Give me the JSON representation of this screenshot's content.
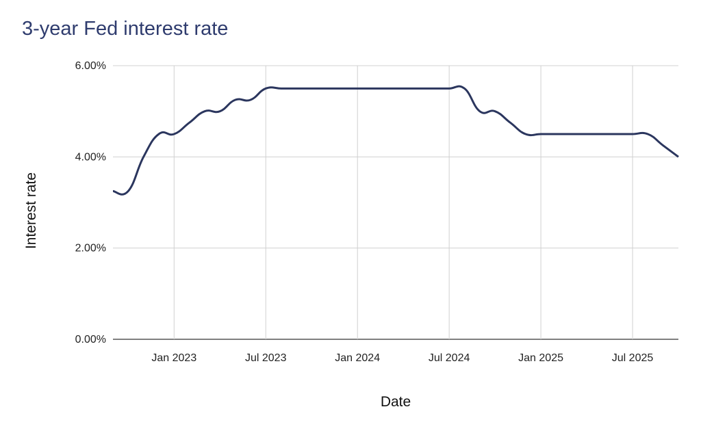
{
  "chart_data": {
    "type": "line",
    "title": "3-year Fed interest rate",
    "xlabel": "Date",
    "ylabel": "Interest rate",
    "ylim": [
      0,
      6
    ],
    "yticks": [
      "0.00%",
      "2.00%",
      "4.00%",
      "6.00%"
    ],
    "ytick_values": [
      0,
      2,
      4,
      6
    ],
    "xlim": [
      "2022-09",
      "2025-10"
    ],
    "xticks": [
      "Jan 2023",
      "Jul 2023",
      "Jan 2024",
      "Jul 2024",
      "Jan 2025",
      "Jul 2025"
    ],
    "xtick_values": [
      "2023-01",
      "2023-07",
      "2024-01",
      "2024-07",
      "2025-01",
      "2025-07"
    ],
    "grid": true,
    "line_color": "#2b365e",
    "x": [
      "2022-09",
      "2022-10",
      "2022-11",
      "2022-12",
      "2023-01",
      "2023-02",
      "2023-03",
      "2023-04",
      "2023-05",
      "2023-06",
      "2023-07",
      "2023-08",
      "2023-09",
      "2023-10",
      "2023-11",
      "2023-12",
      "2024-01",
      "2024-02",
      "2024-03",
      "2024-04",
      "2024-05",
      "2024-06",
      "2024-07",
      "2024-08",
      "2024-09",
      "2024-10",
      "2024-11",
      "2024-12",
      "2025-01",
      "2025-02",
      "2025-03",
      "2025-04",
      "2025-05",
      "2025-06",
      "2025-07",
      "2025-08",
      "2025-09",
      "2025-10"
    ],
    "values": [
      3.25,
      3.25,
      4.0,
      4.5,
      4.5,
      4.75,
      5.0,
      5.0,
      5.25,
      5.25,
      5.5,
      5.5,
      5.5,
      5.5,
      5.5,
      5.5,
      5.5,
      5.5,
      5.5,
      5.5,
      5.5,
      5.5,
      5.5,
      5.5,
      5.0,
      5.0,
      4.75,
      4.5,
      4.5,
      4.5,
      4.5,
      4.5,
      4.5,
      4.5,
      4.5,
      4.5,
      4.25,
      4.0
    ]
  }
}
